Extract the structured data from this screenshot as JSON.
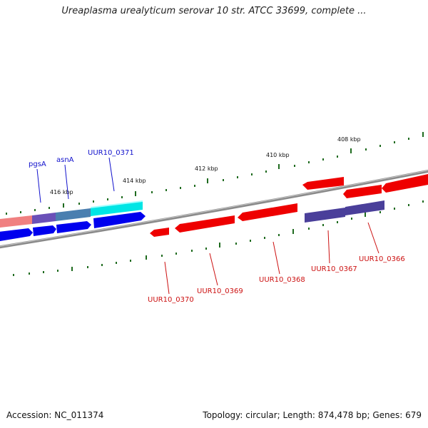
{
  "title": "Ureaplasma urealyticum serovar 10 str. ATCC 33699, complete ...",
  "footer": {
    "accession": "Accession: NC_011374",
    "summary": "Topology: circular; Length: 874,478 bp; Genes: 679"
  },
  "colors": {
    "backbone": "#8a8a8a",
    "tick": "#1f6b1f",
    "label_upper": "#1010cc",
    "label_lower": "#cc1010",
    "gene_blue": "#0000ee",
    "gene_red": "#ee0000",
    "gene_cyan": "#00e5e5",
    "gene_purple": "#4a3f9a",
    "gene_pink": "#f08080",
    "gene_steel": "#4a7fb0",
    "gene_violet": "#6a50b8"
  },
  "scale_labels": [
    "416 kbp",
    "414 kbp",
    "412 kbp",
    "410 kbp",
    "408 kbp"
  ],
  "gene_labels_upper": [
    "pgsA",
    "asnA",
    "UUR10_0371"
  ],
  "gene_labels_lower": [
    "UUR10_0370",
    "UUR10_0369",
    "UUR10_0368",
    "UUR10_0367",
    "UUR10_0366"
  ]
}
